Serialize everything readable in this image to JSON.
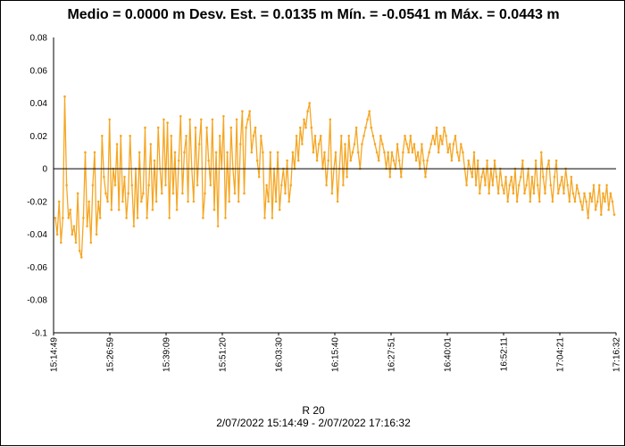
{
  "colors": {
    "series": "#F5A623",
    "axis": "#000000",
    "background": "#ffffff"
  },
  "chart_data": {
    "type": "line",
    "title": "Medio = 0.0000 m  Desv. Est. = 0.0135 m  Mín. = -0.0541 m  Máx. = 0.0443 m",
    "series_name": "R 20",
    "date_range": "2/07/2022 15:14:49 - 2/07/2022 17:16:32",
    "xlabel": "",
    "ylabel": "",
    "x_start": "15:14:49",
    "x_end": "17:16:32",
    "x_ticks": [
      "15:14:49",
      "15:26:59",
      "15:39:09",
      "15:51:20",
      "16:03:30",
      "16:15:40",
      "16:27:51",
      "16:40:01",
      "16:52:11",
      "17:04:21",
      "17:16:32"
    ],
    "y_ticks": [
      "0.08",
      "0.06",
      "0.04",
      "0.02",
      "0",
      "-0.02",
      "-0.04",
      "-0.06",
      "-0.08",
      "-0.1"
    ],
    "ylim": [
      -0.1,
      0.08
    ],
    "stats": {
      "mean": 0.0,
      "std": 0.0135,
      "min": -0.0541,
      "max": 0.0443
    },
    "values": [
      -0.03,
      -0.04,
      -0.02,
      -0.045,
      -0.03,
      0.044,
      -0.01,
      -0.03,
      -0.025,
      -0.04,
      -0.035,
      -0.045,
      -0.015,
      -0.05,
      -0.054,
      -0.03,
      0.01,
      -0.035,
      -0.02,
      -0.045,
      -0.01,
      0.01,
      -0.04,
      -0.02,
      -0.03,
      0.02,
      -0.005,
      -0.015,
      -0.02,
      0.03,
      -0.025,
      0.0,
      -0.01,
      0.015,
      -0.025,
      0.02,
      -0.02,
      -0.005,
      -0.03,
      -0.015,
      0.02,
      -0.01,
      -0.035,
      0.0,
      -0.03,
      0.01,
      -0.02,
      -0.015,
      0.025,
      -0.03,
      -0.01,
      0.015,
      -0.025,
      0.005,
      -0.02,
      0.025,
      0.0,
      -0.015,
      0.03,
      -0.01,
      0.028,
      -0.03,
      0.02,
      -0.015,
      0.01,
      -0.025,
      0.005,
      0.032,
      -0.015,
      0.01,
      0.02,
      -0.02,
      0.03,
      0.0,
      -0.02,
      0.025,
      -0.01,
      0.015,
      0.03,
      -0.03,
      -0.015,
      0.025,
      0.005,
      -0.01,
      0.03,
      -0.025,
      0.01,
      -0.035,
      0.02,
      0.0,
      0.032,
      -0.03,
      0.01,
      -0.02,
      0.025,
      0.0,
      -0.015,
      0.03,
      -0.02,
      0.015,
      0.035,
      -0.015,
      0.025,
      0.03,
      0.035,
      0.01,
      0.02,
      0.025,
      0.005,
      -0.005,
      0.02,
      0.01,
      -0.03,
      -0.01,
      -0.02,
      0.01,
      -0.03,
      0.0,
      -0.02,
      0.01,
      -0.025,
      -0.01,
      0.0,
      -0.015,
      0.005,
      -0.02,
      -0.01,
      0.01,
      0.0,
      0.02,
      0.005,
      0.025,
      0.015,
      0.03,
      0.025,
      0.035,
      0.04,
      0.025,
      0.01,
      0.02,
      0.005,
      0.015,
      0.02,
      0.0,
      0.01,
      -0.01,
      0.005,
      0.03,
      -0.015,
      0.0,
      0.01,
      -0.02,
      0.0,
      0.02,
      -0.01,
      0.015,
      -0.005,
      0.02,
      0.005,
      0.01,
      0.015,
      0.025,
      0.01,
      0.0,
      0.015,
      0.02,
      0.025,
      0.03,
      0.035,
      0.025,
      0.02,
      0.015,
      0.01,
      0.005,
      0.02,
      0.015,
      0.01,
      0.0,
      0.01,
      -0.005,
      0.01,
      0.005,
      0.0,
      0.015,
      0.005,
      -0.005,
      0.01,
      0.02,
      0.015,
      0.01,
      0.02,
      0.01,
      0.015,
      0.005,
      0.01,
      0.0,
      0.015,
      0.005,
      -0.005,
      0.005,
      0.01,
      0.015,
      0.02,
      0.015,
      0.025,
      0.01,
      0.02,
      0.015,
      0.025,
      0.02,
      0.01,
      0.015,
      0.005,
      0.015,
      0.02,
      0.01,
      0.005,
      0.015,
      0.01,
      0.0,
      -0.01,
      0.005,
      0.0,
      -0.005,
      0.01,
      -0.01,
      0.005,
      -0.015,
      -0.005,
      0.0,
      -0.01,
      0.005,
      -0.015,
      0.0,
      -0.01,
      0.005,
      -0.005,
      -0.015,
      0.0,
      -0.01,
      -0.015,
      -0.005,
      -0.02,
      -0.01,
      -0.005,
      -0.015,
      0.0,
      -0.02,
      -0.01,
      -0.005,
      0.005,
      -0.015,
      -0.01,
      0.0,
      -0.02,
      -0.005,
      -0.015,
      0.005,
      -0.01,
      -0.02,
      0.01,
      -0.005,
      -0.015,
      0.0,
      0.005,
      -0.01,
      -0.02,
      -0.005,
      0.005,
      -0.015,
      -0.01,
      -0.005,
      -0.015,
      0.0,
      -0.01,
      -0.02,
      -0.005,
      -0.015,
      -0.02,
      -0.01,
      -0.015,
      -0.02,
      -0.025,
      -0.015,
      -0.02,
      -0.03,
      -0.015,
      -0.02,
      -0.01,
      -0.025,
      -0.02,
      -0.01,
      -0.028,
      -0.015,
      -0.02,
      -0.01,
      -0.025,
      -0.015,
      -0.02,
      -0.028
    ]
  }
}
